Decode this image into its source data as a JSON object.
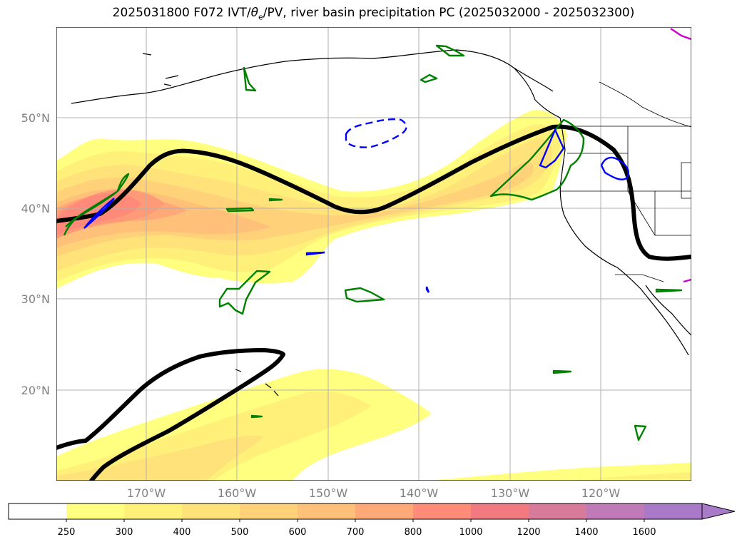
{
  "title": {
    "prefix": "2025031800 F072 IVT/",
    "theta_symbol": "θ",
    "theta_sub": "e",
    "suffix": "/PV, river basin precipitation PC (2025032000 - 2025032300)"
  },
  "axes": {
    "lat_labels": [
      "50°N",
      "40°N",
      "30°N",
      "20°N"
    ],
    "lon_labels": [
      "170°W",
      "160°W",
      "150°W",
      "140°W",
      "130°W",
      "120°W"
    ]
  },
  "colorbar": {
    "levels": [
      "250",
      "300",
      "400",
      "500",
      "600",
      "700",
      "800",
      "1000",
      "1200",
      "1400",
      "1600"
    ],
    "colors": [
      "#ffffff",
      "#ffff80",
      "#fff07a",
      "#ffe27a",
      "#ffd27a",
      "#ffc07a",
      "#ffa878",
      "#ff8c78",
      "#f07a80",
      "#d87a9a",
      "#c07ab8",
      "#a87ac8"
    ],
    "extend": "max"
  },
  "colors": {
    "ivt_light": "#ffff80",
    "ivt_mid": "#ffe27a",
    "ivt_high": "#ffb078",
    "ivt_peak": "#ff8a7a",
    "pv_contour": "#000000",
    "green_contour": "#008000",
    "blue_contour": "#0000ff",
    "magenta_contour": "#cc00cc",
    "grid": "#b0b0b0"
  }
}
